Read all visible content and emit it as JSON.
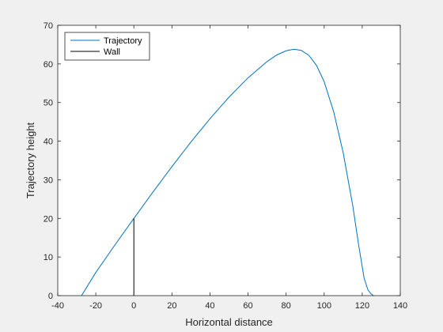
{
  "chart_data": {
    "type": "line",
    "xlabel": "Horizontal distance",
    "ylabel": "Trajectory height",
    "xlim": [
      -40,
      140
    ],
    "ylim": [
      0,
      70
    ],
    "xticks": [
      -40,
      -20,
      0,
      20,
      40,
      60,
      80,
      100,
      120,
      140
    ],
    "yticks": [
      0,
      10,
      20,
      30,
      40,
      50,
      60,
      70
    ],
    "grid": false,
    "legend_position": "top-left",
    "series": [
      {
        "name": "Trajectory",
        "color": "#0072BD",
        "x": [
          -27.5,
          -20,
          -10,
          0,
          10,
          20,
          30,
          40,
          50,
          60,
          70,
          75,
          80,
          84,
          88,
          92,
          96,
          100,
          105,
          110,
          115,
          118,
          121,
          123,
          124.5,
          126
        ],
        "y": [
          0,
          6.0,
          13.1,
          20.0,
          26.8,
          33.4,
          39.8,
          45.8,
          51.4,
          56.4,
          60.6,
          62.3,
          63.4,
          63.8,
          63.5,
          62.2,
          59.6,
          55.4,
          47.6,
          37.0,
          23.4,
          13.5,
          4.5,
          1.5,
          0.5,
          0
        ]
      },
      {
        "name": "Wall",
        "color": "#000000",
        "x": [
          0,
          0
        ],
        "y": [
          0,
          20
        ]
      }
    ]
  }
}
